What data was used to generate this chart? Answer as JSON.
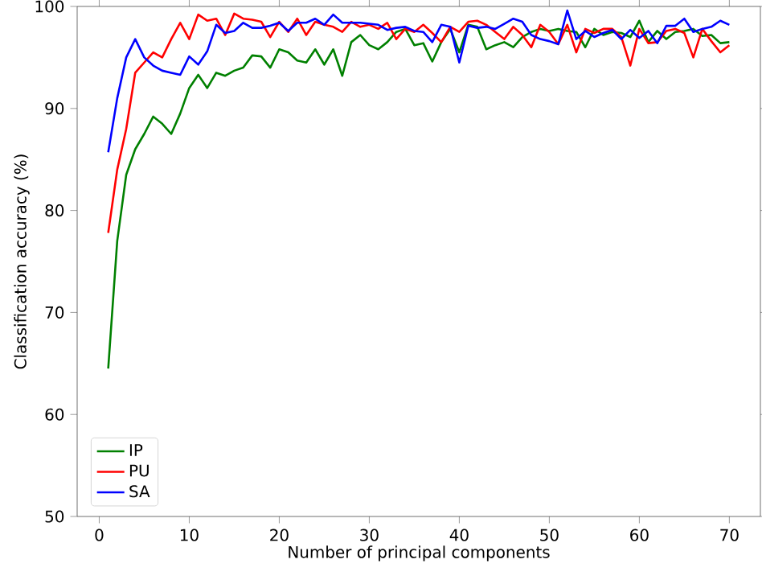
{
  "chart_data": {
    "type": "line",
    "xlabel": "Number of principal components",
    "ylabel": "Classification accuracy (%)",
    "x": [
      1,
      2,
      3,
      4,
      5,
      6,
      7,
      8,
      9,
      10,
      11,
      12,
      13,
      14,
      15,
      16,
      17,
      18,
      19,
      20,
      21,
      22,
      23,
      24,
      25,
      26,
      27,
      28,
      29,
      30,
      31,
      32,
      33,
      34,
      35,
      36,
      37,
      38,
      39,
      40,
      41,
      42,
      43,
      44,
      45,
      46,
      47,
      48,
      49,
      50,
      51,
      52,
      53,
      54,
      55,
      56,
      57,
      58,
      59,
      60,
      61,
      62,
      63,
      64,
      65,
      66,
      67,
      68,
      69,
      70
    ],
    "series": [
      {
        "name": "IP",
        "color": "#008000",
        "values": [
          64.5,
          77,
          83.5,
          86,
          87.5,
          89.2,
          88.5,
          87.5,
          89.5,
          92,
          93.3,
          92,
          93.5,
          93.2,
          93.7,
          94,
          95.2,
          95.1,
          94,
          95.8,
          95.5,
          94.7,
          94.5,
          95.8,
          94.3,
          95.8,
          93.2,
          96.5,
          97.2,
          96.2,
          95.8,
          96.5,
          97.5,
          97.8,
          96.2,
          96.4,
          94.6,
          96.5,
          97.8,
          95.5,
          98.2,
          98,
          95.8,
          96.2,
          96.5,
          96,
          97,
          97.5,
          97.8,
          97.6,
          97.8,
          97.6,
          97.5,
          96,
          97.8,
          97.2,
          97.5,
          97.4,
          97,
          98.6,
          96.5,
          97.6,
          96.8,
          97.5,
          97.6,
          97.8,
          97.1,
          97.2,
          96.4,
          96.5
        ]
      },
      {
        "name": "PU",
        "color": "#ff0000",
        "values": [
          77.8,
          84,
          88,
          93.5,
          94.5,
          95.5,
          95,
          96.8,
          98.4,
          96.8,
          99.2,
          98.6,
          98.8,
          97.2,
          99.3,
          98.8,
          98.7,
          98.5,
          97,
          98.5,
          97.5,
          98.8,
          97.2,
          98.5,
          98.2,
          98,
          97.5,
          98.5,
          98,
          98.2,
          97.8,
          98.4,
          96.8,
          97.8,
          97.5,
          98.2,
          97.4,
          96.5,
          98,
          97.5,
          98.5,
          98.6,
          98.2,
          97.5,
          96.8,
          98,
          97.2,
          96,
          98.2,
          97.5,
          96.3,
          98.2,
          95.5,
          97.8,
          97.4,
          97.8,
          97.8,
          97,
          94.2,
          97.8,
          96.4,
          96.5,
          97.6,
          97.8,
          97.4,
          95,
          97.8,
          96.6,
          95.5,
          96.2
        ]
      },
      {
        "name": "SA",
        "color": "#0000ff",
        "values": [
          85.7,
          91,
          95,
          96.8,
          95,
          94.2,
          93.7,
          93.5,
          93.3,
          95.1,
          94.3,
          95.6,
          98.2,
          97.4,
          97.6,
          98.4,
          97.9,
          97.9,
          98.1,
          98.4,
          97.6,
          98.4,
          98.4,
          98.8,
          98.2,
          99.2,
          98.4,
          98.4,
          98.4,
          98.3,
          98.2,
          97.7,
          97.9,
          98,
          97.6,
          97.5,
          96.5,
          98.2,
          98,
          94.5,
          98.1,
          97.9,
          98,
          97.8,
          98.3,
          98.8,
          98.5,
          97.2,
          96.8,
          96.6,
          96.3,
          99.6,
          96.8,
          97.6,
          97,
          97.4,
          97.7,
          96.8,
          97.7,
          96.9,
          97.6,
          96.4,
          98.1,
          98.1,
          98.8,
          97.5,
          97.8,
          98,
          98.6,
          98.2
        ]
      }
    ],
    "xlim": [
      -2.45,
      73.45
    ],
    "ylim": [
      50,
      100
    ],
    "xticks": [
      0,
      10,
      20,
      30,
      40,
      50,
      60,
      70
    ],
    "yticks": [
      50,
      60,
      70,
      80,
      90,
      100
    ],
    "legend": "bottom left",
    "grid": false,
    "marker": "none",
    "line_style": "solid"
  }
}
